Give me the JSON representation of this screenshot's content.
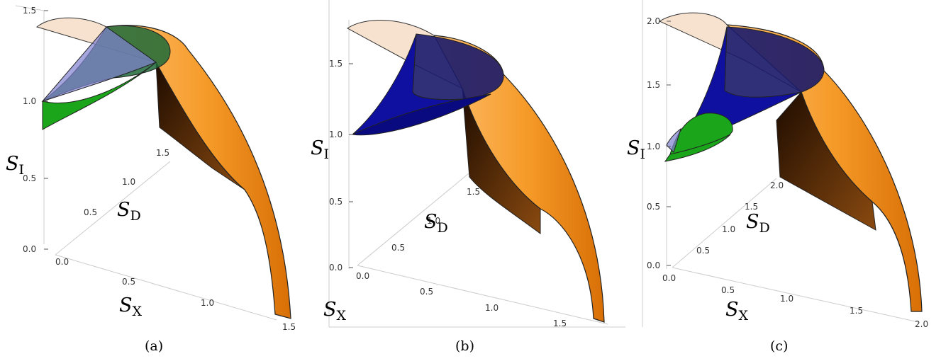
{
  "colors": {
    "orange_light": "#ffb050",
    "orange": "#f08a12",
    "brown_dark": "#3a1c02",
    "cap_beige": "#f6e2cf",
    "green": "#1aa51a",
    "dark_green": "#1d6a38",
    "blue": "#1010a0",
    "lavender": "#8080d0",
    "frame": "#bbbbbb"
  },
  "axis_symbols": {
    "si_main": "S",
    "si_sub": "I",
    "sd_main": "S",
    "sd_sub": "D",
    "sx_main": "S",
    "sx_sub": "X"
  },
  "panels": [
    {
      "caption": "(a)",
      "si_ticks": [
        "1.5",
        "1.0",
        "0.5",
        "0.0"
      ],
      "sd_ticks": [
        "0.5",
        "1.0",
        "1.5"
      ],
      "sx_ticks": [
        "0.0",
        "0.5",
        "1.0",
        "1.5"
      ]
    },
    {
      "caption": "(b)",
      "si_ticks": [
        "1.5",
        "1.0",
        "0.5",
        "0.0"
      ],
      "sd_ticks": [
        "0.5",
        "1.0",
        "1.5"
      ],
      "sx_ticks": [
        "0.0",
        "0.5",
        "1.0",
        "1.5"
      ]
    },
    {
      "caption": "(c)",
      "si_ticks": [
        "2.0",
        "1.5",
        "1.0",
        "0.5",
        "0.0"
      ],
      "sd_ticks": [
        "0.5",
        "1.0",
        "1.5",
        "2.0"
      ],
      "sx_ticks": [
        "0.0",
        "0.5",
        "1.0",
        "1.5",
        "2.0"
      ]
    }
  ]
}
